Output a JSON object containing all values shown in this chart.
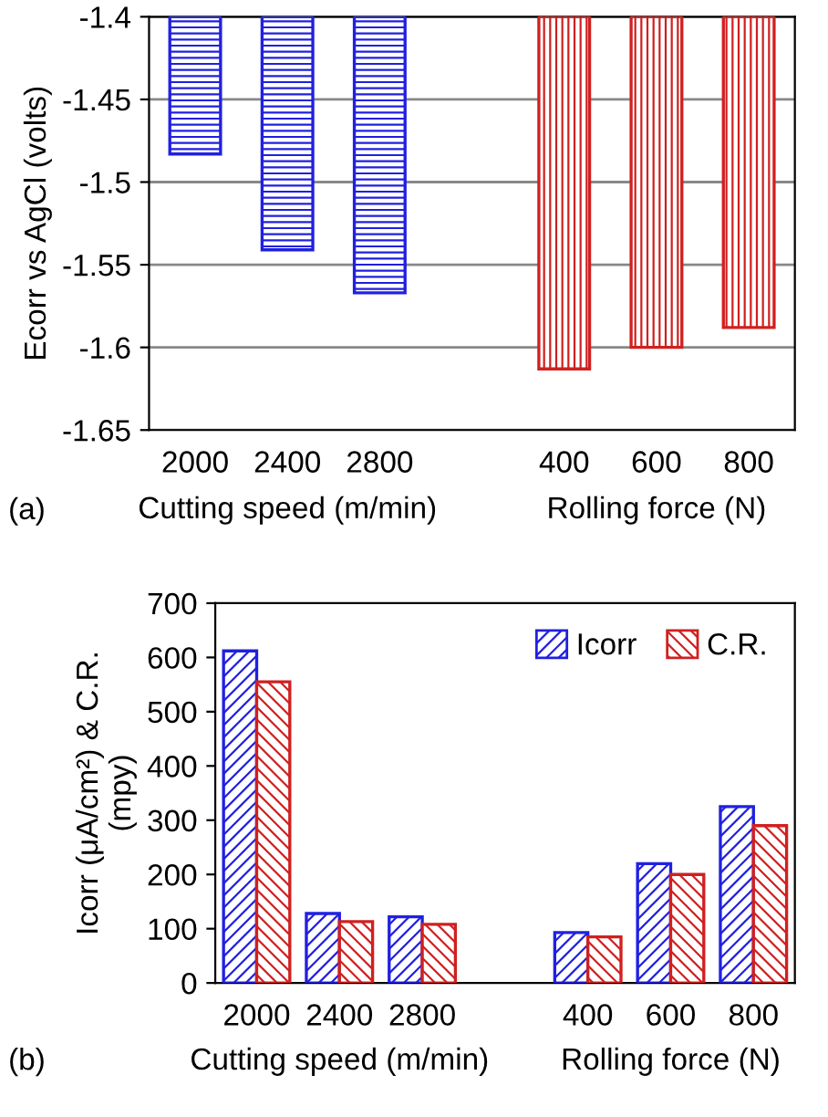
{
  "chart_data": [
    {
      "type": "bar",
      "categories": [
        "2000",
        "2400",
        "2800",
        null,
        "400",
        "600",
        "800"
      ],
      "ylabel": "Ecorr vs AgCl (volts)",
      "xlabel": "Cutting speed (m/min)",
      "annotations": [
        "Rolling force (N)",
        "(a)"
      ],
      "ylim": [
        -1.65,
        -1.4
      ],
      "yticks": [
        -1.65,
        -1.6,
        -1.55,
        -1.5,
        -1.45,
        -1.4
      ],
      "grid": "y",
      "legend": false,
      "series": [
        {
          "color": "#2020e0",
          "values": [
            -1.483,
            -1.541,
            -1.567,
            null,
            null,
            null,
            null
          ]
        },
        {
          "color": "#d02020",
          "values": [
            null,
            null,
            null,
            null,
            -1.613,
            -1.6,
            -1.588
          ]
        }
      ]
    },
    {
      "type": "bar",
      "categories": [
        "2000",
        "2400",
        "2800",
        null,
        "400",
        "600",
        "800"
      ],
      "ylabel": "Icorr (μA/cm²) & C.R.\n(mpy)",
      "xlabel": "Cutting speed (m/min)",
      "annotations": [
        "Rolling force (N)",
        "(b)"
      ],
      "ylim": [
        0,
        700
      ],
      "yticks": [
        0,
        100,
        200,
        300,
        400,
        500,
        600,
        700
      ],
      "grid": false,
      "legend": "top right",
      "series": [
        {
          "name": "Icorr",
          "color": "#2020e0",
          "values": [
            612,
            128,
            122,
            null,
            93,
            220,
            325
          ]
        },
        {
          "name": "C.R.",
          "color": "#d02020",
          "values": [
            555,
            113,
            108,
            null,
            85,
            200,
            290
          ]
        }
      ]
    }
  ]
}
